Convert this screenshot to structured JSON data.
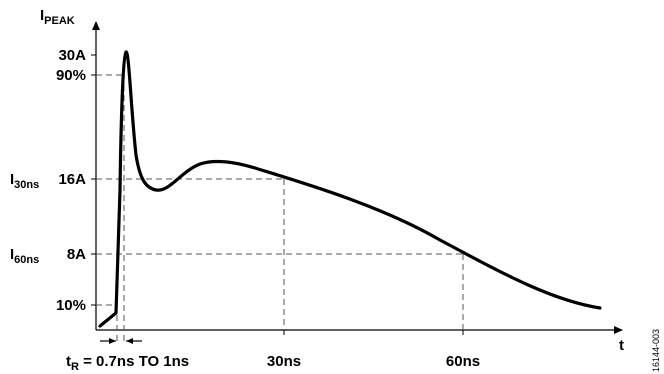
{
  "axes": {
    "y_label": "I",
    "y_label_sub": "PEAK",
    "x_label": "t"
  },
  "y_ticks": {
    "peak": "30A",
    "p90": "90%",
    "i30_main": "I",
    "i30_sub": "30ns",
    "i30_value": "16A",
    "i60_main": "I",
    "i60_sub": "60ns",
    "i60_value": "8A",
    "p10": "10%"
  },
  "x_ticks": {
    "t30": "30ns",
    "t60": "60ns"
  },
  "rise_time": {
    "prefix": "t",
    "sub": "R",
    "text": " = 0.7ns TO 1ns"
  },
  "figure_id": "16144-003",
  "colors": {
    "curve": "#000000",
    "guides": "#555555"
  }
}
